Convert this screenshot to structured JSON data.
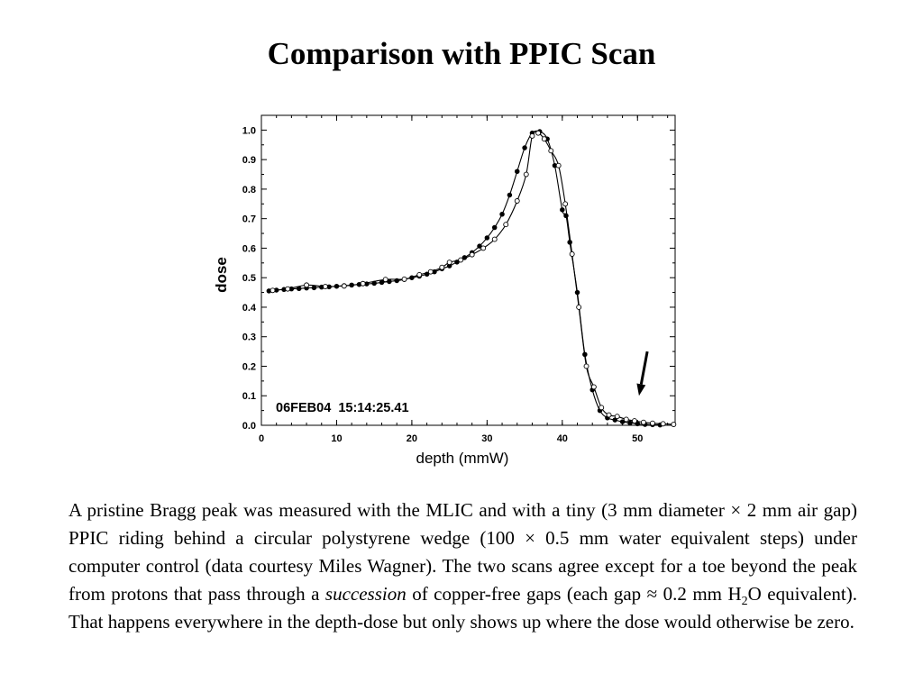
{
  "slide": {
    "title": "Comparison with PPIC Scan"
  },
  "chart_data": {
    "type": "scatter",
    "title": "",
    "xlabel": "depth (mmW)",
    "ylabel": "dose",
    "xlim": [
      0,
      55
    ],
    "ylim": [
      0,
      1.05
    ],
    "x_ticks": [
      0,
      10,
      20,
      30,
      40,
      50
    ],
    "x_tick_labels": [
      "0",
      "10",
      "20",
      "30",
      "40",
      "50"
    ],
    "y_ticks": [
      0,
      0.1,
      0.2,
      0.3,
      0.4,
      0.5,
      0.6,
      0.7,
      0.8,
      0.9,
      1.0
    ],
    "y_tick_labels": [
      "0.0",
      "0.1",
      "0.2",
      "0.3",
      "0.4",
      "0.5",
      "0.6",
      "0.7",
      "0.8",
      "0.9",
      "1.0"
    ],
    "grid": false,
    "legend": "none",
    "annotation": "06FEB04  15:14:25.41",
    "arrow": {
      "from": [
        51.3,
        0.25
      ],
      "to": [
        50.2,
        0.1
      ]
    },
    "series": [
      {
        "marker": "filled-circle",
        "x": [
          1,
          2,
          3,
          4,
          5,
          6,
          7,
          8,
          9,
          10,
          11,
          12,
          13,
          14,
          15,
          16,
          17,
          18,
          19,
          20,
          21,
          22,
          23,
          24,
          25,
          26,
          27,
          28,
          29,
          30,
          31,
          32,
          33,
          34,
          35,
          36,
          37,
          38,
          39,
          40,
          40.5,
          41,
          42,
          43,
          44,
          45,
          46,
          47,
          48,
          49,
          50,
          51,
          52,
          53
        ],
        "y": [
          0.455,
          0.458,
          0.46,
          0.462,
          0.463,
          0.465,
          0.466,
          0.468,
          0.469,
          0.471,
          0.473,
          0.475,
          0.477,
          0.479,
          0.481,
          0.484,
          0.487,
          0.49,
          0.494,
          0.5,
          0.505,
          0.512,
          0.52,
          0.53,
          0.54,
          0.553,
          0.568,
          0.585,
          0.607,
          0.635,
          0.67,
          0.715,
          0.78,
          0.86,
          0.94,
          0.99,
          0.995,
          0.97,
          0.88,
          0.73,
          0.71,
          0.62,
          0.45,
          0.24,
          0.12,
          0.05,
          0.025,
          0.018,
          0.012,
          0.008,
          0.005,
          0.003,
          0.002,
          0.001
        ]
      },
      {
        "marker": "open-circle",
        "x": [
          1.5,
          3.5,
          6,
          8.5,
          11,
          13.5,
          16.5,
          19,
          21,
          22.5,
          24,
          25,
          26.5,
          28,
          29.5,
          31,
          32.5,
          34,
          35.2,
          36,
          36.8,
          37.6,
          38.5,
          39.5,
          40.4,
          41.3,
          42.2,
          43.2,
          44.2,
          45.2,
          46.2,
          47.3,
          48.5,
          49.6,
          50.8,
          52,
          53.4,
          54.8
        ],
        "y": [
          0.457,
          0.462,
          0.475,
          0.47,
          0.472,
          0.48,
          0.494,
          0.495,
          0.51,
          0.52,
          0.535,
          0.552,
          0.56,
          0.578,
          0.6,
          0.63,
          0.68,
          0.76,
          0.85,
          0.98,
          0.99,
          0.97,
          0.93,
          0.88,
          0.75,
          0.58,
          0.4,
          0.2,
          0.13,
          0.06,
          0.035,
          0.03,
          0.02,
          0.015,
          0.01,
          0.007,
          0.005,
          0.003
        ]
      }
    ]
  },
  "caption": {
    "part1": "A pristine Bragg peak was measured with the MLIC and with a tiny (3 mm diameter × 2 mm air gap) PPIC riding behind a circular polystyrene wedge (100 × 0.5 mm water equivalent steps) under computer control (data courtesy Miles Wagner). The two scans agree except for a toe beyond the peak from protons that pass through a ",
    "emphasis": "succession",
    "part2": " of copper-free gaps (each gap  ≈ 0.2 mm H",
    "sub": "2",
    "part3": "O equivalent). That happens everywhere in the depth-dose but only shows up where the dose would otherwise be zero."
  }
}
